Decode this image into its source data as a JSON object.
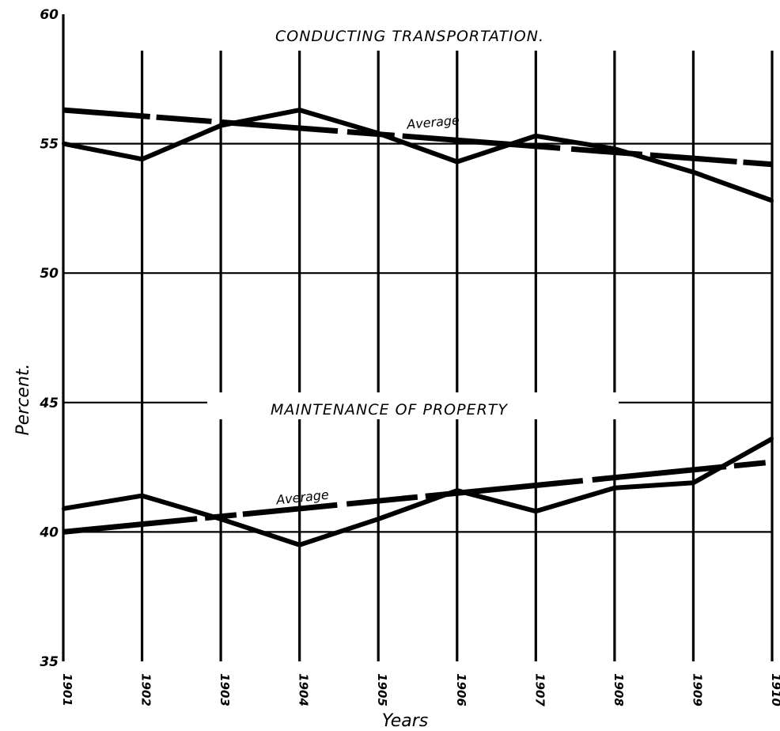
{
  "chart_data": {
    "type": "line",
    "xlabel": "Years",
    "ylabel": "Percent.",
    "ylim": [
      35,
      60
    ],
    "yticks": [
      "60",
      "55",
      "50",
      "45",
      "40",
      "35"
    ],
    "x": [
      "1901",
      "1902",
      "1903",
      "1904",
      "1905",
      "1906",
      "1907",
      "1908",
      "1909",
      "1910"
    ],
    "grid": true,
    "panels": [
      {
        "title": "CONDUCTING TRANSPORTATION.",
        "series": [
          {
            "values": [
              55.0,
              54.4,
              55.7,
              56.3,
              55.4,
              54.3,
              55.3,
              54.8,
              53.9,
              52.8
            ]
          }
        ],
        "average": {
          "label": "Average",
          "start": 56.3,
          "end": 54.2
        }
      },
      {
        "title": "MAINTENANCE OF PROPERTY",
        "series": [
          {
            "values": [
              40.9,
              41.4,
              40.5,
              39.5,
              40.5,
              41.6,
              40.8,
              41.7,
              41.9,
              43.6
            ]
          }
        ],
        "average": {
          "label": "Average",
          "start": 40.0,
          "end": 42.7
        }
      }
    ]
  }
}
